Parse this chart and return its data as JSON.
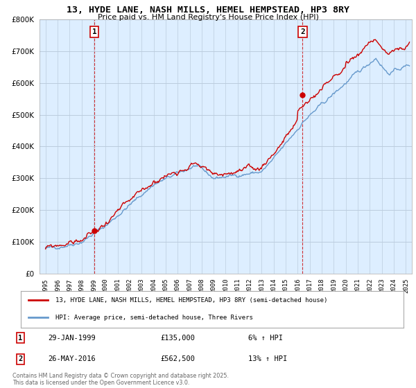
{
  "title": "13, HYDE LANE, NASH MILLS, HEMEL HEMPSTEAD, HP3 8RY",
  "subtitle": "Price paid vs. HM Land Registry's House Price Index (HPI)",
  "legend_line1": "13, HYDE LANE, NASH MILLS, HEMEL HEMPSTEAD, HP3 8RY (semi-detached house)",
  "legend_line2": "HPI: Average price, semi-detached house, Three Rivers",
  "copyright": "Contains HM Land Registry data © Crown copyright and database right 2025.\nThis data is licensed under the Open Government Licence v3.0.",
  "transactions": [
    {
      "num": 1,
      "date": "29-JAN-1999",
      "price": "£135,000",
      "pct": "6% ↑ HPI"
    },
    {
      "num": 2,
      "date": "26-MAY-2016",
      "price": "£562,500",
      "pct": "13% ↑ HPI"
    }
  ],
  "transaction_years": [
    1999.08,
    2016.4
  ],
  "transaction_prices": [
    135000,
    562500
  ],
  "price_color": "#cc0000",
  "hpi_color": "#6699cc",
  "dashed_color": "#cc0000",
  "marker_box_color": "#cc0000",
  "plot_bg": "#ddeeff",
  "ylim": [
    0,
    800000
  ],
  "yticks": [
    0,
    100000,
    200000,
    300000,
    400000,
    500000,
    600000,
    700000,
    800000
  ],
  "xlim_start": 1994.5,
  "xlim_end": 2025.5,
  "background": "#ffffff",
  "grid_color": "#bbccdd"
}
